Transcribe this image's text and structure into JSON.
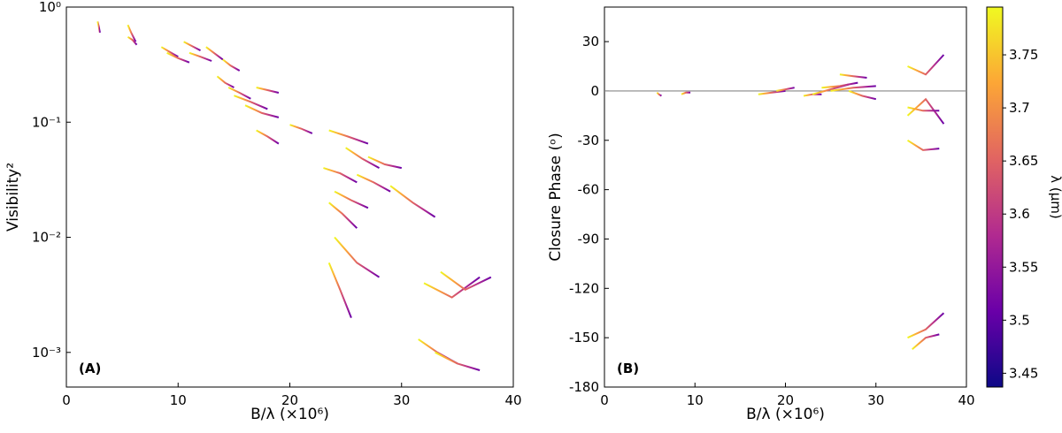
{
  "chart_data": [
    {
      "type": "line",
      "panel_label": "(A)",
      "xlabel": "B/λ (×10⁶)",
      "ylabel": "Visibility²",
      "log_y": true,
      "xlim": [
        0,
        40
      ],
      "xticks": [
        0,
        10,
        20,
        30,
        40
      ],
      "ylim": [
        0.0005,
        1
      ],
      "yticks": [
        {
          "value": 1,
          "label": "10⁰"
        },
        {
          "value": 0.1,
          "label": "10⁻¹"
        },
        {
          "value": 0.01,
          "label": "10⁻²"
        },
        {
          "value": 0.001,
          "label": "10⁻³"
        }
      ],
      "colormap": [
        "#f0f921",
        "#fca636",
        "#e16462",
        "#b12a90",
        "#6a00a8"
      ],
      "series": [
        {
          "x": [
            2.8,
            2.9,
            3.0
          ],
          "values": [
            0.75,
            0.68,
            0.6
          ]
        },
        {
          "x": [
            5.5,
            5.8,
            6.2
          ],
          "values": [
            0.7,
            0.6,
            0.5
          ]
        },
        {
          "x": [
            5.5,
            5.9,
            6.3
          ],
          "values": [
            0.55,
            0.52,
            0.47
          ]
        },
        {
          "x": [
            8.5,
            9.2,
            10
          ],
          "values": [
            0.45,
            0.41,
            0.37
          ]
        },
        {
          "x": [
            9,
            10,
            11
          ],
          "values": [
            0.4,
            0.36,
            0.33
          ]
        },
        {
          "x": [
            10.5,
            11.2,
            12
          ],
          "values": [
            0.5,
            0.46,
            0.42
          ]
        },
        {
          "x": [
            11,
            12,
            13
          ],
          "values": [
            0.4,
            0.37,
            0.34
          ]
        },
        {
          "x": [
            12.5,
            13.2,
            14
          ],
          "values": [
            0.45,
            0.4,
            0.35
          ]
        },
        {
          "x": [
            14,
            14.7,
            15.5
          ],
          "values": [
            0.35,
            0.31,
            0.28
          ]
        },
        {
          "x": [
            13.5,
            14.2,
            15
          ],
          "values": [
            0.25,
            0.22,
            0.2
          ]
        },
        {
          "x": [
            14.5,
            15.5,
            16.5
          ],
          "values": [
            0.2,
            0.18,
            0.16
          ]
        },
        {
          "x": [
            15,
            16.5,
            18
          ],
          "values": [
            0.17,
            0.15,
            0.13
          ]
        },
        {
          "x": [
            17,
            18,
            19
          ],
          "values": [
            0.2,
            0.19,
            0.18
          ]
        },
        {
          "x": [
            16,
            17.5,
            19
          ],
          "values": [
            0.14,
            0.12,
            0.11
          ]
        },
        {
          "x": [
            17,
            18,
            19
          ],
          "values": [
            0.085,
            0.075,
            0.065
          ]
        },
        {
          "x": [
            20,
            21,
            22
          ],
          "values": [
            0.095,
            0.088,
            0.08
          ]
        },
        {
          "x": [
            23.5,
            25.2,
            27
          ],
          "values": [
            0.085,
            0.075,
            0.065
          ]
        },
        {
          "x": [
            25,
            26.5,
            28
          ],
          "values": [
            0.06,
            0.048,
            0.04
          ]
        },
        {
          "x": [
            23,
            24.5,
            26
          ],
          "values": [
            0.04,
            0.036,
            0.03
          ]
        },
        {
          "x": [
            27,
            28.5,
            30
          ],
          "values": [
            0.05,
            0.043,
            0.04
          ]
        },
        {
          "x": [
            26,
            27.5,
            29
          ],
          "values": [
            0.035,
            0.03,
            0.025
          ]
        },
        {
          "x": [
            24,
            25.5,
            27
          ],
          "values": [
            0.025,
            0.021,
            0.018
          ]
        },
        {
          "x": [
            23.5,
            24.7,
            26
          ],
          "values": [
            0.02,
            0.016,
            0.012
          ]
        },
        {
          "x": [
            29,
            31,
            33
          ],
          "values": [
            0.028,
            0.02,
            0.015
          ]
        },
        {
          "x": [
            24,
            26,
            28
          ],
          "values": [
            0.01,
            0.006,
            0.0045
          ]
        },
        {
          "x": [
            23.5,
            24.5,
            25.5
          ],
          "values": [
            0.006,
            0.0035,
            0.002
          ]
        },
        {
          "x": [
            31.5,
            33.2,
            35
          ],
          "values": [
            0.0013,
            0.001,
            0.0008
          ]
        },
        {
          "x": [
            32,
            34.5,
            37
          ],
          "values": [
            0.004,
            0.003,
            0.0045
          ]
        },
        {
          "x": [
            33.5,
            35.7,
            38
          ],
          "values": [
            0.005,
            0.0035,
            0.0045
          ]
        },
        {
          "x": [
            33,
            35,
            37
          ],
          "values": [
            0.001,
            0.0008,
            0.0007
          ]
        }
      ]
    },
    {
      "type": "line",
      "panel_label": "(B)",
      "xlabel": "B/λ (×10⁶)",
      "ylabel": "Closure Phase (ᵒ)",
      "hline": 0,
      "xlim": [
        0,
        40
      ],
      "xticks": [
        0,
        10,
        20,
        30,
        40
      ],
      "ylim": [
        -180,
        51
      ],
      "yticks": [
        30,
        0,
        -30,
        -60,
        -90,
        -120,
        -150,
        -180
      ],
      "colormap": [
        "#f0f921",
        "#fca636",
        "#e16462",
        "#b12a90",
        "#6a00a8"
      ],
      "series": [
        {
          "x": [
            5.8,
            6.0,
            6.3
          ],
          "values": [
            -1,
            -2,
            -3
          ]
        },
        {
          "x": [
            8.5,
            9,
            9.5
          ],
          "values": [
            -2,
            -1,
            -1
          ]
        },
        {
          "x": [
            17,
            18.5,
            20
          ],
          "values": [
            -2,
            -1,
            0
          ]
        },
        {
          "x": [
            19,
            20,
            21
          ],
          "values": [
            0,
            1,
            2
          ]
        },
        {
          "x": [
            22,
            23,
            24
          ],
          "values": [
            -3,
            -2,
            -2
          ]
        },
        {
          "x": [
            23,
            25,
            27
          ],
          "values": [
            -2,
            1,
            4
          ]
        },
        {
          "x": [
            24,
            26,
            28
          ],
          "values": [
            2,
            3,
            5
          ]
        },
        {
          "x": [
            26,
            27.5,
            29
          ],
          "values": [
            10,
            9,
            8
          ]
        },
        {
          "x": [
            25,
            27.5,
            30
          ],
          "values": [
            0,
            2,
            3
          ]
        },
        {
          "x": [
            27,
            28.5,
            30
          ],
          "values": [
            0,
            -3,
            -5
          ]
        },
        {
          "x": [
            33.5,
            35.5,
            37.5
          ],
          "values": [
            15,
            10,
            22
          ]
        },
        {
          "x": [
            33.5,
            35.5,
            37.5
          ],
          "values": [
            -15,
            -5,
            -20
          ]
        },
        {
          "x": [
            33.5,
            35.2,
            37
          ],
          "values": [
            -30,
            -36,
            -35
          ]
        },
        {
          "x": [
            33.5,
            35.2,
            37
          ],
          "values": [
            -10,
            -12,
            -12
          ]
        },
        {
          "x": [
            33.5,
            35.5,
            37.5
          ],
          "values": [
            -150,
            -145,
            -135
          ]
        },
        {
          "x": [
            34,
            35.5,
            37
          ],
          "values": [
            -157,
            -150,
            -148
          ]
        }
      ],
      "colorbar": {
        "label": "λ (μm)",
        "lim": [
          3.437,
          3.795
        ],
        "ticks": [
          3.45,
          3.5,
          3.55,
          3.6,
          3.65,
          3.7,
          3.75
        ],
        "colors": [
          "#0d0887",
          "#6a00a8",
          "#b12a90",
          "#e16462",
          "#fca636",
          "#f0f921"
        ]
      }
    }
  ]
}
